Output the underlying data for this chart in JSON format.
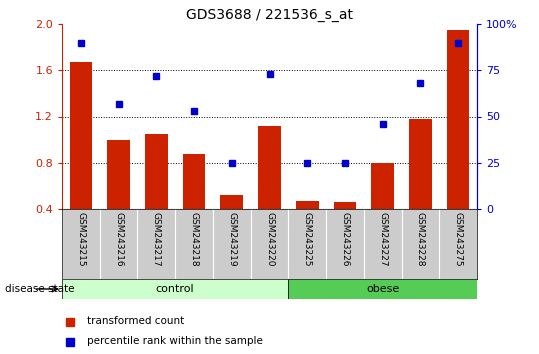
{
  "title": "GDS3688 / 221536_s_at",
  "samples": [
    "GSM243215",
    "GSM243216",
    "GSM243217",
    "GSM243218",
    "GSM243219",
    "GSM243220",
    "GSM243225",
    "GSM243226",
    "GSM243227",
    "GSM243228",
    "GSM243275"
  ],
  "transformed_count": [
    1.67,
    1.0,
    1.05,
    0.88,
    0.52,
    1.12,
    0.47,
    0.46,
    0.8,
    1.18,
    1.95
  ],
  "percentile_rank": [
    90,
    57,
    72,
    53,
    25,
    73,
    25,
    25,
    46,
    68,
    90
  ],
  "groups": [
    "control",
    "control",
    "control",
    "control",
    "control",
    "control",
    "obese",
    "obese",
    "obese",
    "obese",
    "obese"
  ],
  "ylim_left": [
    0.4,
    2.0
  ],
  "ylim_right": [
    0,
    100
  ],
  "yticks_left": [
    0.4,
    0.8,
    1.2,
    1.6,
    2.0
  ],
  "yticks_right": [
    0,
    25,
    50,
    75,
    100
  ],
  "bar_color": "#cc2200",
  "dot_color": "#0000cc",
  "control_color": "#ccffcc",
  "obese_color": "#55cc55",
  "tick_area_color": "#cccccc",
  "legend_bar_label": "transformed count",
  "legend_dot_label": "percentile rank within the sample",
  "group_label": "disease state"
}
